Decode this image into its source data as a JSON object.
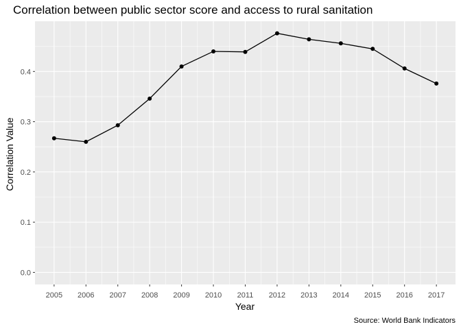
{
  "chart_data": {
    "type": "line",
    "title": "Correlation between public sector score and access to rural sanitation",
    "xlabel": "Year",
    "ylabel": "Correlation Value",
    "caption": "Source: World Bank Indicators",
    "x": [
      2005,
      2006,
      2007,
      2008,
      2009,
      2010,
      2011,
      2012,
      2013,
      2014,
      2015,
      2016,
      2017
    ],
    "y": [
      0.267,
      0.26,
      0.293,
      0.346,
      0.41,
      0.44,
      0.439,
      0.476,
      0.464,
      0.456,
      0.445,
      0.406,
      0.376
    ],
    "xlim": [
      2004.4,
      2017.6
    ],
    "ylim": [
      -0.024,
      0.5
    ],
    "y_ticks": [
      0.0,
      0.1,
      0.2,
      0.3,
      0.4
    ],
    "y_tick_labels": [
      "0.0",
      "0.1",
      "0.2",
      "0.3",
      "0.4"
    ],
    "x_ticks": [
      2005,
      2006,
      2007,
      2008,
      2009,
      2010,
      2011,
      2012,
      2013,
      2014,
      2015,
      2016,
      2017
    ],
    "x_tick_labels": [
      "2005",
      "2006",
      "2007",
      "2008",
      "2009",
      "2010",
      "2011",
      "2012",
      "2013",
      "2014",
      "2015",
      "2016",
      "2017"
    ],
    "grid": true,
    "legend": "none",
    "colors": {
      "panel_background": "#ebebeb",
      "grid_major": "#ffffff",
      "line": "#000000",
      "point": "#000000",
      "tick_text": "#4d4d4d"
    }
  }
}
